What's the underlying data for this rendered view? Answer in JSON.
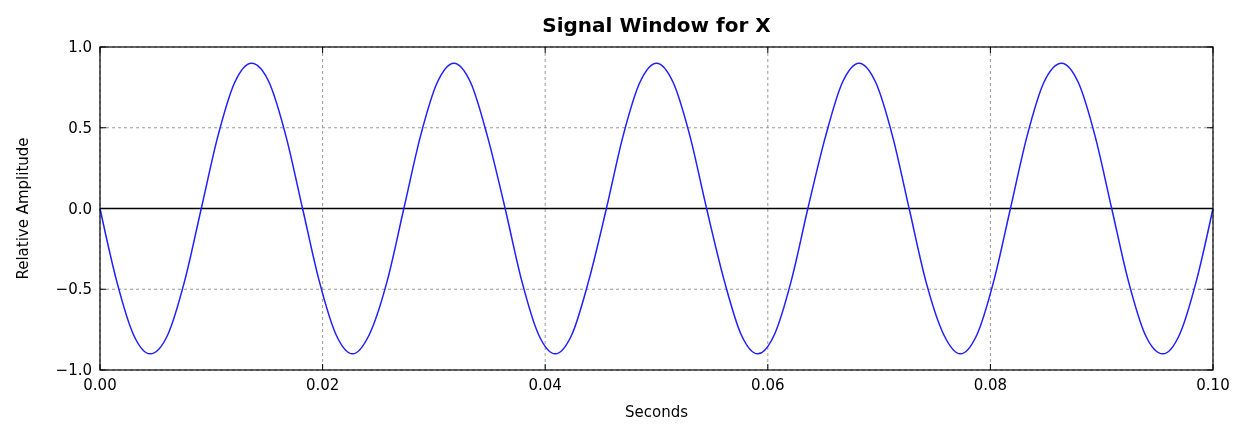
{
  "chart_data": {
    "type": "line",
    "title": "Signal Window for X",
    "xlabel": "Seconds",
    "ylabel": "Relative Amplitude",
    "x": [
      0,
      0.0015,
      0.003,
      0.0045,
      0.0061,
      0.0076,
      0.0091,
      0.0106,
      0.0121,
      0.0136,
      0.0152,
      0.0167,
      0.0182,
      0.0197,
      0.0212,
      0.0227,
      0.0242,
      0.0258,
      0.0273,
      0.0288,
      0.0303,
      0.0318,
      0.0333,
      0.0348,
      0.0364,
      0.0379,
      0.0394,
      0.0409,
      0.0424,
      0.0439,
      0.0455,
      0.047,
      0.0485,
      0.05,
      0.0515,
      0.053,
      0.0545,
      0.0561,
      0.0576,
      0.0591,
      0.0606,
      0.0621,
      0.0636,
      0.0652,
      0.0667,
      0.0682,
      0.0697,
      0.0712,
      0.0727,
      0.0742,
      0.0758,
      0.0773,
      0.0788,
      0.0803,
      0.0818,
      0.0833,
      0.0848,
      0.0864,
      0.0879,
      0.0894,
      0.0909,
      0.0924,
      0.0939,
      0.0955,
      0.097,
      0.0985,
      0.1
    ],
    "series": [
      {
        "color": "#1f1fff",
        "values": [
          0,
          -0.45,
          -0.78,
          -0.9,
          -0.78,
          -0.45,
          0,
          0.45,
          0.78,
          0.9,
          0.78,
          0.45,
          0,
          -0.45,
          -0.78,
          -0.9,
          -0.78,
          -0.45,
          0,
          0.45,
          0.78,
          0.9,
          0.78,
          0.45,
          0,
          -0.45,
          -0.78,
          -0.9,
          -0.78,
          -0.45,
          0,
          0.45,
          0.78,
          0.9,
          0.78,
          0.45,
          0,
          -0.45,
          -0.78,
          -0.9,
          -0.78,
          -0.45,
          0,
          0.45,
          0.78,
          0.9,
          0.78,
          0.45,
          0,
          -0.45,
          -0.78,
          -0.9,
          -0.78,
          -0.45,
          0,
          0.45,
          0.78,
          0.9,
          0.78,
          0.45,
          0,
          -0.45,
          -0.78,
          -0.9,
          -0.78,
          -0.45,
          0
        ]
      }
    ],
    "xlim": [
      0,
      0.1
    ],
    "xticks": [
      {
        "value": 0,
        "label": "0.00"
      },
      {
        "value": 0.02,
        "label": "0.02"
      },
      {
        "value": 0.04,
        "label": "0.04"
      },
      {
        "value": 0.06,
        "label": "0.06"
      },
      {
        "value": 0.08,
        "label": "0.08"
      },
      {
        "value": 0.1,
        "label": "0.10"
      }
    ],
    "ylim": [
      -1,
      1
    ],
    "yticks": [
      {
        "value": -1,
        "label": "−1.0"
      },
      {
        "value": -0.5,
        "label": "−0.5"
      },
      {
        "value": 0,
        "label": "0.0"
      },
      {
        "value": 0.5,
        "label": "0.5"
      },
      {
        "value": 1,
        "label": "1.0"
      }
    ],
    "grid": true,
    "ref_lines": [
      {
        "axis": "y",
        "value": 0,
        "color": "#000000"
      }
    ]
  }
}
